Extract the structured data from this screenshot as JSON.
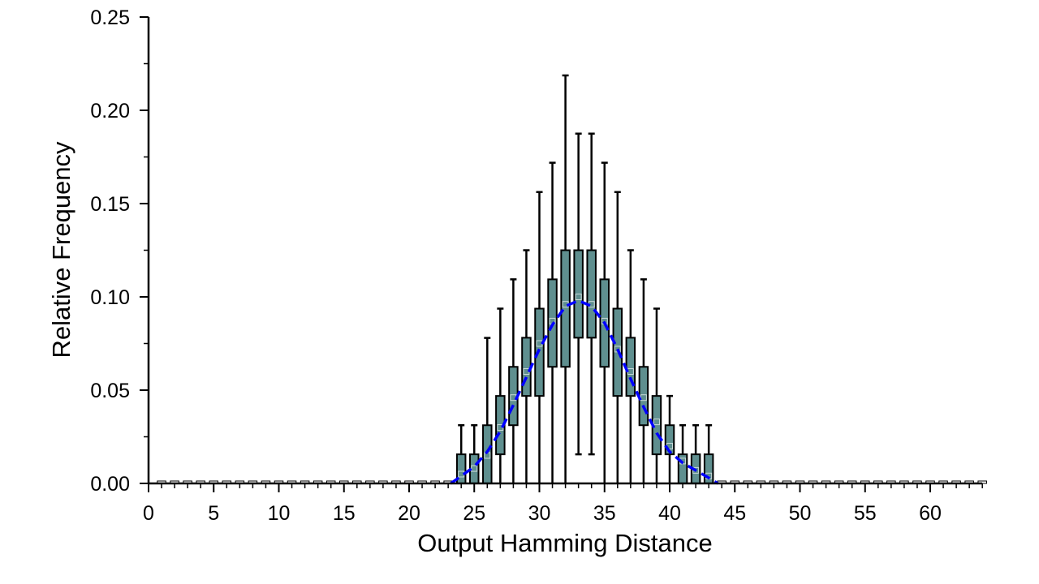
{
  "chart_data": {
    "type": "box",
    "title": "",
    "xlabel": "Output Hamming Distance",
    "ylabel": "Relative Frequency",
    "xlim": [
      0,
      64
    ],
    "ylim": [
      0,
      0.25
    ],
    "x_ticks": [
      0,
      5,
      10,
      15,
      20,
      25,
      30,
      35,
      40,
      45,
      50,
      55,
      60
    ],
    "x_tick_labels": [
      "0",
      "5",
      "10",
      "15",
      "20",
      "25",
      "30",
      "35",
      "40",
      "45",
      "50",
      "55",
      "60"
    ],
    "y_ticks": [
      0,
      0.05,
      0.1,
      0.15,
      0.2,
      0.25
    ],
    "y_tick_labels": [
      "0.00",
      "0.05",
      "0.10",
      "0.15",
      "0.20",
      "0.25"
    ],
    "grid": false,
    "box_fill_color": "#5f8f8f",
    "box_edge_color": "#000000",
    "curve_color": "#0000ff",
    "boxes": [
      {
        "x": 24,
        "whisker_low": 0,
        "q1": 0,
        "median": 0.005,
        "q3": 0.0156,
        "whisker_high": 0.0312
      },
      {
        "x": 25,
        "whisker_low": 0,
        "q1": 0,
        "median": 0.008,
        "q3": 0.0156,
        "whisker_high": 0.0312
      },
      {
        "x": 26,
        "whisker_low": 0,
        "q1": 0,
        "median": 0.015,
        "q3": 0.0312,
        "whisker_high": 0.078
      },
      {
        "x": 27,
        "whisker_low": 0,
        "q1": 0.0156,
        "median": 0.03,
        "q3": 0.0469,
        "whisker_high": 0.0937
      },
      {
        "x": 28,
        "whisker_low": 0,
        "q1": 0.0312,
        "median": 0.046,
        "q3": 0.0625,
        "whisker_high": 0.1094
      },
      {
        "x": 29,
        "whisker_low": 0,
        "q1": 0.0469,
        "median": 0.06,
        "q3": 0.0781,
        "whisker_high": 0.125
      },
      {
        "x": 30,
        "whisker_low": 0,
        "q1": 0.0469,
        "median": 0.075,
        "q3": 0.0937,
        "whisker_high": 0.1562
      },
      {
        "x": 31,
        "whisker_low": 0,
        "q1": 0.0625,
        "median": 0.087,
        "q3": 0.1094,
        "whisker_high": 0.1719
      },
      {
        "x": 32,
        "whisker_low": 0,
        "q1": 0.0625,
        "median": 0.096,
        "q3": 0.125,
        "whisker_high": 0.2187
      },
      {
        "x": 33,
        "whisker_low": 0.0156,
        "q1": 0.0781,
        "median": 0.1,
        "q3": 0.125,
        "whisker_high": 0.1875
      },
      {
        "x": 34,
        "whisker_low": 0.0156,
        "q1": 0.0781,
        "median": 0.096,
        "q3": 0.125,
        "whisker_high": 0.1875
      },
      {
        "x": 35,
        "whisker_low": 0,
        "q1": 0.0625,
        "median": 0.087,
        "q3": 0.1094,
        "whisker_high": 0.1719
      },
      {
        "x": 36,
        "whisker_low": 0,
        "q1": 0.0469,
        "median": 0.072,
        "q3": 0.0937,
        "whisker_high": 0.1562
      },
      {
        "x": 37,
        "whisker_low": 0,
        "q1": 0.0469,
        "median": 0.06,
        "q3": 0.0781,
        "whisker_high": 0.125
      },
      {
        "x": 38,
        "whisker_low": 0,
        "q1": 0.0312,
        "median": 0.046,
        "q3": 0.0625,
        "whisker_high": 0.1094
      },
      {
        "x": 39,
        "whisker_low": 0,
        "q1": 0.0156,
        "median": 0.033,
        "q3": 0.0469,
        "whisker_high": 0.0937
      },
      {
        "x": 40,
        "whisker_low": 0,
        "q1": 0.0156,
        "median": 0.02,
        "q3": 0.0312,
        "whisker_high": 0.0469
      },
      {
        "x": 41,
        "whisker_low": 0,
        "q1": 0,
        "median": 0.012,
        "q3": 0.0156,
        "whisker_high": 0.0312
      },
      {
        "x": 42,
        "whisker_low": 0,
        "q1": 0,
        "median": 0.007,
        "q3": 0.0156,
        "whisker_high": 0.0312
      },
      {
        "x": 43,
        "whisker_low": 0,
        "q1": 0,
        "median": 0.004,
        "q3": 0.0156,
        "whisker_high": 0.0312
      }
    ],
    "zero_marker_x": [
      1,
      2,
      3,
      4,
      5,
      6,
      7,
      8,
      9,
      10,
      11,
      12,
      13,
      14,
      15,
      16,
      17,
      18,
      19,
      20,
      21,
      22,
      23,
      44,
      45,
      46,
      47,
      48,
      49,
      50,
      51,
      52,
      53,
      54,
      55,
      56,
      57,
      58,
      59,
      60,
      61,
      62,
      63,
      64
    ],
    "curve": {
      "style": "dashed",
      "x": [
        23.2,
        24,
        25,
        26,
        27,
        28,
        29,
        30,
        31,
        32,
        33,
        34,
        35,
        36,
        37,
        38,
        39,
        40,
        41,
        42,
        43,
        43.7
      ],
      "y": [
        0.0,
        0.004,
        0.009,
        0.017,
        0.028,
        0.042,
        0.057,
        0.072,
        0.085,
        0.095,
        0.098,
        0.095,
        0.086,
        0.072,
        0.056,
        0.041,
        0.027,
        0.017,
        0.011,
        0.007,
        0.003,
        0.0
      ]
    }
  }
}
